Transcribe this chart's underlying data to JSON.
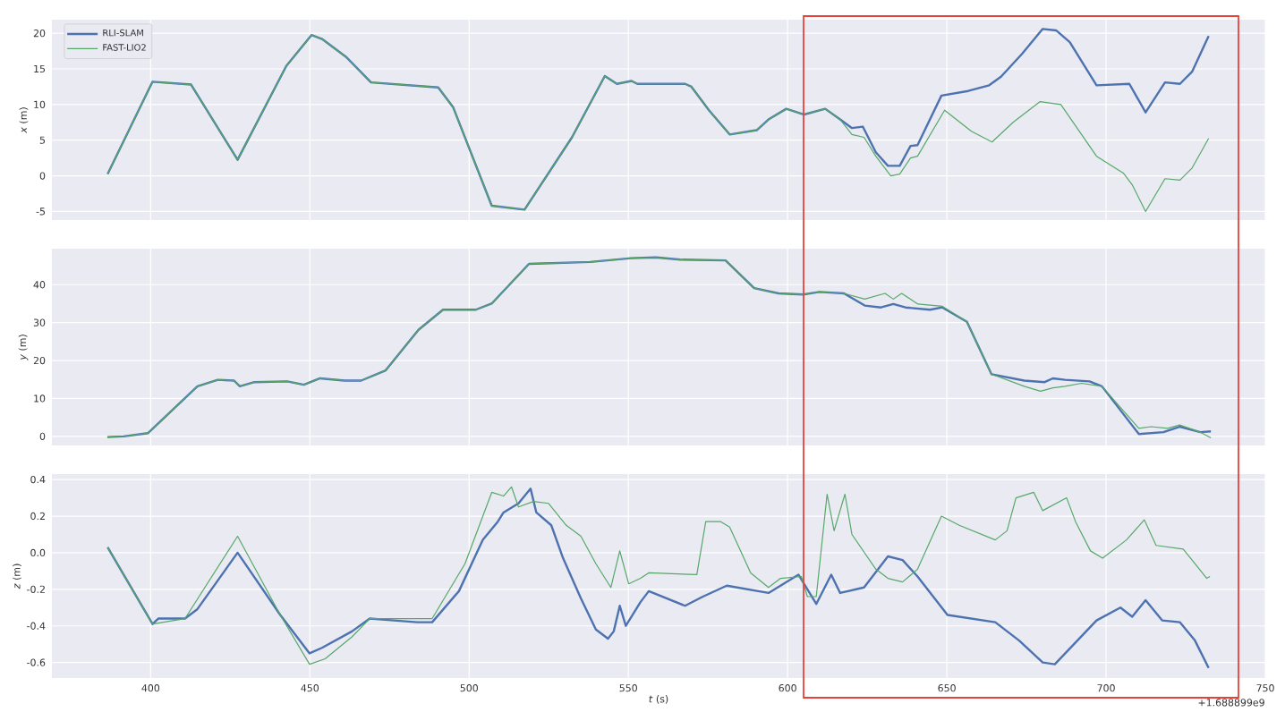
{
  "chart_data": [
    {
      "type": "line",
      "ylabel": "*x* (m)",
      "xlim": [
        369,
        750
      ],
      "ylim": [
        -6.2,
        21.9
      ],
      "xticks": [
        400,
        450,
        500,
        550,
        600,
        650,
        700,
        750
      ],
      "yticks": [
        -5,
        0,
        5,
        10,
        15,
        20
      ],
      "tick_labels": "y",
      "grid": true,
      "legend": "top left",
      "series": [
        {
          "name": "RLI-SLAM",
          "color": "#4c72b0",
          "x": [
            386.5,
            400.6,
            412.7,
            427.3,
            442.6,
            450.5,
            453.8,
            461.3,
            469.2,
            490.3,
            495,
            507.1,
            517.4,
            532.3,
            542.6,
            546.4,
            551,
            552.8,
            567.8,
            569.8,
            575.3,
            581.8,
            590.3,
            594,
            599.6,
            605.2,
            611.8,
            616.5,
            620.2,
            623.6,
            627.7,
            631.5,
            635.2,
            638.6,
            640.8,
            648.3,
            656.7,
            663.3,
            667,
            673.6,
            680.1,
            684.3,
            688.6,
            697,
            707.3,
            712.4,
            718.5,
            723.2,
            727,
            732.2
          ],
          "values": [
            0.25,
            13.2,
            12.8,
            2.25,
            15.4,
            19.75,
            19.2,
            16.7,
            13.1,
            12.4,
            9.6,
            -4.2,
            -4.75,
            5.4,
            14,
            12.9,
            13.3,
            12.9,
            12.9,
            12.5,
            9.2,
            5.8,
            6.4,
            7.9,
            9.4,
            8.6,
            9.4,
            7.9,
            6.7,
            6.9,
            3.3,
            1.4,
            1.4,
            4.2,
            4.3,
            11.25,
            11.9,
            12.7,
            13.9,
            17.1,
            20.6,
            20.4,
            18.75,
            12.7,
            12.9,
            8.9,
            13.1,
            12.9,
            14.6,
            19.6
          ]
        },
        {
          "name": "FAST-LIO2",
          "color": "#55a868",
          "x": [
            386.5,
            400.6,
            412.7,
            427.3,
            442.6,
            450.5,
            453.8,
            461.3,
            469.2,
            490.3,
            495,
            507.1,
            517.4,
            532.3,
            542.6,
            546.4,
            551,
            552.8,
            567.8,
            569.8,
            575.3,
            581.8,
            590.3,
            594,
            599.6,
            605.2,
            611.8,
            616.5,
            620.2,
            624,
            627.7,
            632.4,
            635.2,
            638.6,
            640.8,
            649.3,
            657.7,
            664.2,
            670.8,
            679.2,
            685.8,
            697,
            705.4,
            708.2,
            712.4,
            718.5,
            723.2,
            727,
            732.2
          ],
          "values": [
            0.25,
            13.2,
            12.8,
            2.25,
            15.4,
            19.75,
            19.2,
            16.7,
            13.1,
            12.4,
            9.6,
            -4.2,
            -4.75,
            5.4,
            14,
            12.9,
            13.3,
            12.9,
            12.9,
            12.5,
            9.2,
            5.8,
            6.4,
            7.9,
            9.4,
            8.6,
            9.4,
            7.9,
            5.8,
            5.4,
            2.75,
            0,
            0.25,
            2.5,
            2.75,
            9.2,
            6.25,
            4.75,
            7.5,
            10.4,
            10,
            2.75,
            0.4,
            -1.25,
            -5,
            -0.4,
            -0.6,
            1.1,
            5.25
          ]
        }
      ]
    },
    {
      "type": "line",
      "ylabel": "*y* (m)",
      "xlim": [
        369,
        750
      ],
      "ylim": [
        -2.4,
        49.5
      ],
      "xticks": [
        400,
        450,
        500,
        550,
        600,
        650,
        700,
        750
      ],
      "yticks": [
        0,
        10,
        20,
        30,
        40
      ],
      "tick_labels": "y",
      "grid": true,
      "series": [
        {
          "color": "#4c72b0",
          "x": [
            386.4,
            391.5,
            399.2,
            414.7,
            421.1,
            426.2,
            428,
            432.6,
            442.9,
            448.1,
            453.2,
            460.9,
            466.1,
            473.8,
            484.1,
            491.8,
            502.1,
            507.2,
            518.8,
            538,
            550.9,
            558.6,
            566.3,
            580.5,
            589.5,
            597.2,
            604.9,
            610,
            617.7,
            624.2,
            629.3,
            633.2,
            637,
            644.7,
            648.6,
            656.3,
            664,
            674.3,
            680.7,
            683.3,
            687.1,
            694.8,
            698.7,
            710.3,
            718,
            723.1,
            729.6,
            732.9
          ],
          "values": [
            -0.2,
            0,
            0.85,
            13.2,
            14.9,
            14.7,
            13.2,
            14.3,
            14.5,
            13.6,
            15.3,
            14.7,
            14.7,
            17.4,
            28.1,
            33.4,
            33.4,
            35.1,
            45.5,
            46,
            47,
            47.2,
            46.6,
            46.4,
            39.1,
            37.7,
            37.4,
            38.1,
            37.7,
            34.5,
            34,
            34.9,
            34,
            33.4,
            34,
            30.2,
            16.4,
            14.7,
            14.3,
            15.3,
            14.9,
            14.5,
            13.2,
            0.6,
            1.1,
            2.55,
            1.1,
            1.3
          ]
        },
        {
          "color": "#55a868",
          "x": [
            386.4,
            391.5,
            399.2,
            414.7,
            421.1,
            426.2,
            428,
            432.6,
            442.9,
            448.1,
            453.2,
            460.9,
            466.1,
            473.8,
            484.1,
            491.8,
            502.1,
            507.2,
            518.8,
            538,
            550.9,
            558.6,
            566.3,
            580.5,
            589.5,
            597.2,
            604.9,
            610,
            617.7,
            624.2,
            630.6,
            633.2,
            635.8,
            640.9,
            648.6,
            656.3,
            664,
            674.3,
            679.4,
            683.3,
            687.1,
            692.3,
            698.7,
            710.3,
            714.1,
            719.3,
            723.1,
            729.6,
            732.9
          ],
          "values": [
            -0.2,
            0,
            0.85,
            13.2,
            14.9,
            14.7,
            13.2,
            14.3,
            14.5,
            13.6,
            15.3,
            14.7,
            14.7,
            17.4,
            28.1,
            33.4,
            33.4,
            35.1,
            45.5,
            46,
            47,
            47.2,
            46.6,
            46.4,
            39.1,
            37.7,
            37.4,
            38.1,
            37.7,
            36.2,
            37.7,
            36.2,
            37.7,
            34.9,
            34.3,
            30.2,
            16.4,
            13.2,
            11.9,
            12.8,
            13.2,
            14,
            13.2,
            2.1,
            2.55,
            2.1,
            3,
            1.1,
            -0.4
          ]
        }
      ]
    },
    {
      "type": "line",
      "xlabel": "*t* (s)",
      "ylabel": "*z* (m)",
      "xlim": [
        369,
        750
      ],
      "ylim": [
        -0.685,
        0.43
      ],
      "xticks": [
        400,
        450,
        500,
        550,
        600,
        650,
        700,
        750
      ],
      "yticks": [
        -0.6,
        -0.4,
        -0.2,
        {
          "value": 0,
          "label": "0.0"
        },
        0.2,
        0.4
      ],
      "grid": true,
      "annotations": [
        "+1.688899e9"
      ],
      "series": [
        {
          "color": "#4c72b0",
          "x": [
            386.5,
            400.6,
            402.4,
            410.8,
            414.6,
            427.3,
            440.7,
            449.9,
            453.8,
            463.2,
            468.8,
            476.3,
            483.7,
            488.4,
            496.8,
            504.3,
            509,
            510.8,
            515.5,
            519.3,
            521.1,
            525.8,
            529.5,
            535.1,
            539.8,
            543.6,
            545.4,
            547.3,
            549.2,
            553.8,
            556.4,
            567.8,
            573.4,
            580.9,
            594,
            603.4,
            609,
            613.7,
            616.5,
            624,
            631.5,
            636.1,
            640.8,
            650.2,
            665.2,
            672.7,
            680.1,
            683.9,
            697,
            704.5,
            708.2,
            712.4,
            717.6,
            723.2,
            727.9,
            732.2
          ],
          "values": [
            0.03,
            -0.39,
            -0.36,
            -0.36,
            -0.31,
            0,
            -0.34,
            -0.55,
            -0.52,
            -0.43,
            -0.36,
            -0.37,
            -0.38,
            -0.38,
            -0.21,
            0.07,
            0.17,
            0.22,
            0.27,
            0.35,
            0.22,
            0.15,
            -0.03,
            -0.25,
            -0.42,
            -0.47,
            -0.43,
            -0.29,
            -0.4,
            -0.27,
            -0.21,
            -0.29,
            -0.24,
            -0.18,
            -0.22,
            -0.12,
            -0.28,
            -0.12,
            -0.22,
            -0.19,
            -0.02,
            -0.04,
            -0.13,
            -0.34,
            -0.38,
            -0.48,
            -0.6,
            -0.61,
            -0.37,
            -0.3,
            -0.35,
            -0.26,
            -0.37,
            -0.38,
            -0.48,
            -0.63
          ]
        },
        {
          "color": "#55a868",
          "x": [
            386.5,
            400.6,
            410.8,
            427.3,
            440.7,
            449.9,
            454.8,
            463.2,
            468.8,
            488.4,
            498.7,
            507.1,
            510.8,
            513.3,
            515.5,
            520.2,
            524.9,
            530.5,
            535.1,
            539.8,
            544.5,
            547.3,
            550.1,
            553.8,
            556.4,
            571.5,
            574.3,
            579,
            581.8,
            588.4,
            594,
            597.8,
            604.3,
            606.2,
            609,
            612.4,
            614.6,
            618,
            620.2,
            627.7,
            631.5,
            636.1,
            640.8,
            648.3,
            653.9,
            665.2,
            668.9,
            671.7,
            677.3,
            680.1,
            687.6,
            690.4,
            695.1,
            698.9,
            706.4,
            712,
            715.7,
            724.2,
            727.9,
            731.6,
            732.6
          ],
          "values": [
            0.03,
            -0.39,
            -0.36,
            0.09,
            -0.34,
            -0.61,
            -0.58,
            -0.46,
            -0.36,
            -0.36,
            -0.06,
            0.33,
            0.31,
            0.36,
            0.25,
            0.28,
            0.27,
            0.15,
            0.09,
            -0.06,
            -0.19,
            0.01,
            -0.17,
            -0.14,
            -0.11,
            -0.12,
            0.17,
            0.17,
            0.14,
            -0.11,
            -0.19,
            -0.14,
            -0.13,
            -0.24,
            -0.24,
            0.32,
            0.12,
            0.32,
            0.1,
            -0.09,
            -0.14,
            -0.16,
            -0.09,
            0.2,
            0.15,
            0.07,
            0.12,
            0.3,
            0.33,
            0.23,
            0.3,
            0.17,
            0.01,
            -0.03,
            0.07,
            0.18,
            0.04,
            0.02,
            -0.06,
            -0.14,
            -0.13
          ]
        }
      ]
    }
  ]
}
